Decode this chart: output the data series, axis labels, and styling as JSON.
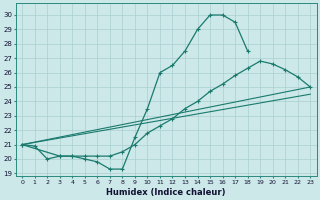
{
  "xlabel": "Humidex (Indice chaleur)",
  "xlim": [
    -0.5,
    23.5
  ],
  "ylim": [
    18.8,
    30.8
  ],
  "xticks": [
    0,
    1,
    2,
    3,
    4,
    5,
    6,
    7,
    8,
    9,
    10,
    11,
    12,
    13,
    14,
    15,
    16,
    17,
    18,
    19,
    20,
    21,
    22,
    23
  ],
  "yticks": [
    19,
    20,
    21,
    22,
    23,
    24,
    25,
    26,
    27,
    28,
    29,
    30
  ],
  "bg_color": "#cce8e8",
  "grid_color": "#aacfcf",
  "line_color": "#1a7a6e",
  "curve1_x": [
    0,
    1,
    2,
    3,
    4,
    5,
    6,
    7,
    8,
    9,
    10,
    11,
    12,
    13,
    14,
    15,
    16,
    17,
    18
  ],
  "curve1_y": [
    21.0,
    20.9,
    20.0,
    20.2,
    20.2,
    20.0,
    19.8,
    19.3,
    19.3,
    21.5,
    23.5,
    26.0,
    26.5,
    27.5,
    29.0,
    30.0,
    30.0,
    29.5,
    27.5
  ],
  "curve2_x": [
    0,
    3,
    4,
    5,
    6,
    7,
    8,
    9,
    10,
    11,
    12,
    13,
    14,
    15,
    16,
    17,
    18,
    19,
    20,
    21,
    22,
    23
  ],
  "curve2_y": [
    21.0,
    20.2,
    20.2,
    20.2,
    20.2,
    20.2,
    20.5,
    21.0,
    21.8,
    22.3,
    22.8,
    23.5,
    24.0,
    24.7,
    25.2,
    25.8,
    26.3,
    26.8,
    26.6,
    26.2,
    25.7,
    25.0
  ],
  "line3_x": [
    0,
    23
  ],
  "line3_y": [
    21.0,
    25.0
  ],
  "line4_x": [
    0,
    23
  ],
  "line4_y": [
    21.0,
    24.5
  ]
}
